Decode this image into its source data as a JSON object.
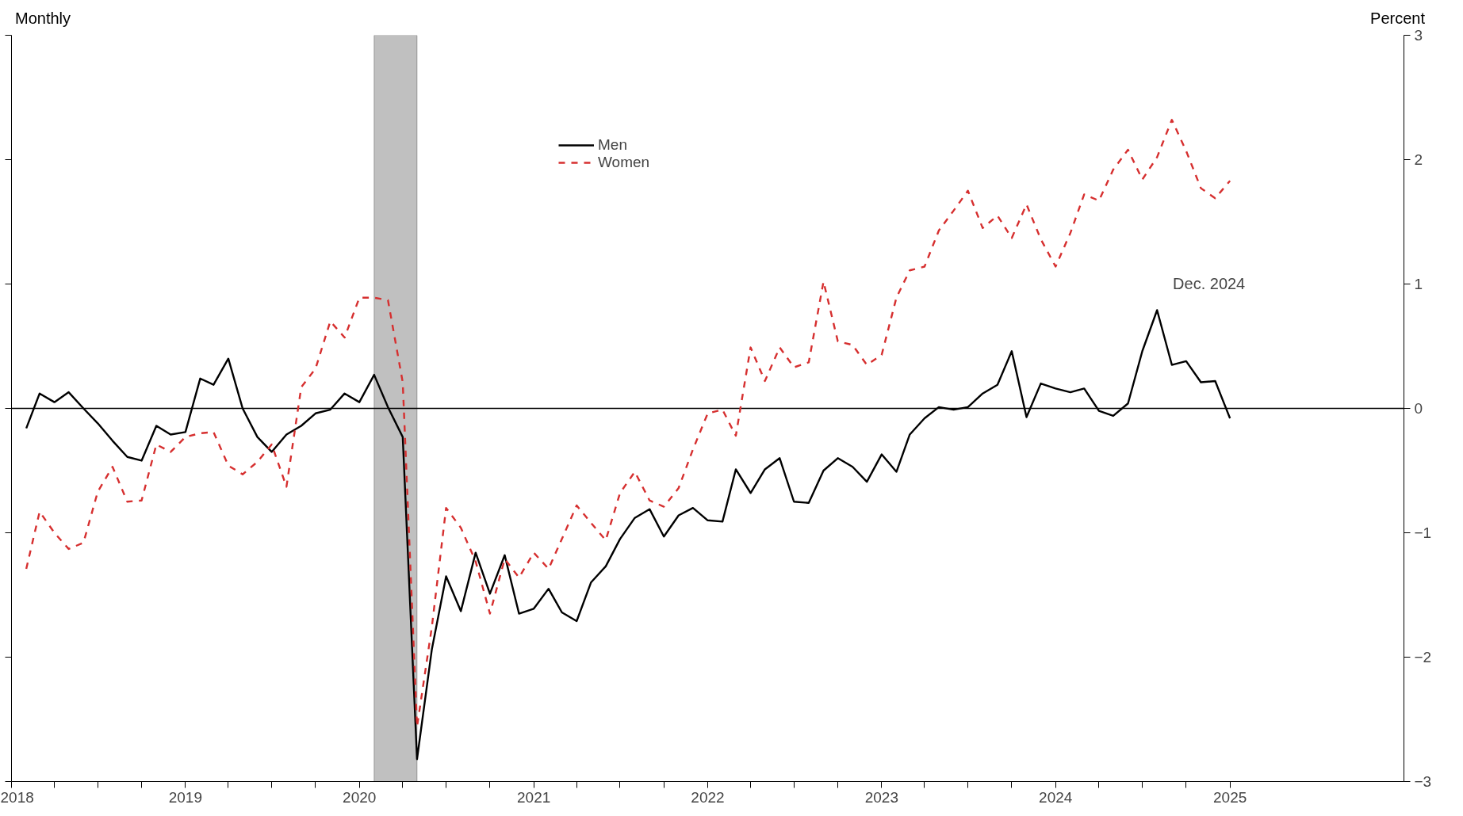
{
  "chart_data": {
    "type": "line",
    "ylabel": "Percent",
    "annotations": [
      "Monthly",
      "Dec. 2024"
    ],
    "x": [
      "2018-02",
      "2018-03",
      "2018-04",
      "2018-05",
      "2018-06",
      "2018-07",
      "2018-08",
      "2018-09",
      "2018-10",
      "2018-11",
      "2018-12",
      "2019-01",
      "2019-02",
      "2019-03",
      "2019-04",
      "2019-05",
      "2019-06",
      "2019-07",
      "2019-08",
      "2019-09",
      "2019-10",
      "2019-11",
      "2019-12",
      "2020-01",
      "2020-02",
      "2020-03",
      "2020-04",
      "2020-05",
      "2020-06",
      "2020-07",
      "2020-08",
      "2020-09",
      "2020-10",
      "2020-11",
      "2020-12",
      "2021-01",
      "2021-02",
      "2021-03",
      "2021-04",
      "2021-05",
      "2021-06",
      "2021-07",
      "2021-08",
      "2021-09",
      "2021-10",
      "2021-11",
      "2021-12",
      "2022-01",
      "2022-02",
      "2022-03",
      "2022-04",
      "2022-05",
      "2022-06",
      "2022-07",
      "2022-08",
      "2022-09",
      "2022-10",
      "2022-11",
      "2022-12",
      "2023-01",
      "2023-02",
      "2023-03",
      "2023-04",
      "2023-05",
      "2023-06",
      "2023-07",
      "2023-08",
      "2023-09",
      "2023-10",
      "2023-11",
      "2023-12",
      "2024-01",
      "2024-02",
      "2024-03",
      "2024-04",
      "2024-05",
      "2024-06",
      "2024-07",
      "2024-08",
      "2024-09",
      "2024-10",
      "2024-11",
      "2024-12",
      "2025-01"
    ],
    "series": [
      {
        "name": "Men",
        "color": "#000000",
        "line_style": "solid",
        "values": [
          -0.16,
          0.12,
          0.05,
          0.13,
          0.0,
          -0.12,
          -0.26,
          -0.39,
          -0.42,
          -0.14,
          -0.21,
          -0.19,
          0.24,
          0.19,
          0.4,
          0.0,
          -0.23,
          -0.35,
          -0.21,
          -0.14,
          -0.04,
          -0.01,
          0.12,
          0.05,
          0.27,
          0.01,
          -0.23,
          -2.82,
          -1.94,
          -1.35,
          -1.63,
          -1.16,
          -1.49,
          -1.18,
          -1.65,
          -1.61,
          -1.45,
          -1.64,
          -1.71,
          -1.4,
          -1.27,
          -1.05,
          -0.88,
          -0.81,
          -1.03,
          -0.86,
          -0.8,
          -0.9,
          -0.91,
          -0.49,
          -0.68,
          -0.49,
          -0.4,
          -0.75,
          -0.76,
          -0.5,
          -0.4,
          -0.47,
          -0.59,
          -0.37,
          -0.51,
          -0.21,
          -0.08,
          0.01,
          -0.01,
          0.01,
          0.12,
          0.19,
          0.46,
          -0.07,
          0.2,
          0.16,
          0.13,
          0.16,
          -0.02,
          -0.06,
          0.04,
          0.46,
          0.79,
          0.35,
          0.38,
          0.21,
          0.22,
          -0.08
        ]
      },
      {
        "name": "Women",
        "color": "#d62f2f",
        "line_style": "dashed",
        "values": [
          -1.29,
          -0.83,
          -1.0,
          -1.13,
          -1.08,
          -0.67,
          -0.47,
          -0.75,
          -0.74,
          -0.29,
          -0.35,
          -0.23,
          -0.2,
          -0.19,
          -0.46,
          -0.53,
          -0.43,
          -0.29,
          -0.63,
          0.17,
          0.32,
          0.7,
          0.57,
          0.89,
          0.89,
          0.87,
          0.21,
          -2.56,
          -1.76,
          -0.8,
          -0.96,
          -1.23,
          -1.65,
          -1.21,
          -1.36,
          -1.16,
          -1.29,
          -1.05,
          -0.78,
          -0.92,
          -1.06,
          -0.68,
          -0.51,
          -0.74,
          -0.79,
          -0.64,
          -0.33,
          -0.04,
          -0.01,
          -0.22,
          0.49,
          0.22,
          0.49,
          0.33,
          0.37,
          1.02,
          0.54,
          0.51,
          0.35,
          0.43,
          0.89,
          1.11,
          1.14,
          1.43,
          1.59,
          1.75,
          1.45,
          1.55,
          1.37,
          1.64,
          1.36,
          1.14,
          1.41,
          1.72,
          1.67,
          1.92,
          2.08,
          1.84,
          2.02,
          2.32,
          2.07,
          1.77,
          1.69,
          1.83
        ]
      }
    ],
    "xlim": [
      "2018-01",
      "2026-01"
    ],
    "xticks": [
      "2018",
      "2019",
      "2020",
      "2021",
      "2022",
      "2023",
      "2024",
      "2025",
      {
        "value": "2018-04",
        "label": null
      },
      {
        "value": "2018-07",
        "label": null
      },
      {
        "value": "2018-10",
        "label": null
      },
      {
        "value": "2019-04",
        "label": null
      },
      {
        "value": "2019-07",
        "label": null
      },
      {
        "value": "2019-10",
        "label": null
      },
      {
        "value": "2020-04",
        "label": null
      },
      {
        "value": "2020-07",
        "label": null
      },
      {
        "value": "2020-10",
        "label": null
      },
      {
        "value": "2021-04",
        "label": null
      },
      {
        "value": "2021-07",
        "label": null
      },
      {
        "value": "2021-10",
        "label": null
      },
      {
        "value": "2022-04",
        "label": null
      },
      {
        "value": "2022-07",
        "label": null
      },
      {
        "value": "2022-10",
        "label": null
      },
      {
        "value": "2023-04",
        "label": null
      },
      {
        "value": "2023-07",
        "label": null
      },
      {
        "value": "2023-10",
        "label": null
      },
      {
        "value": "2024-04",
        "label": null
      },
      {
        "value": "2024-07",
        "label": null
      },
      {
        "value": "2024-10",
        "label": null
      }
    ],
    "ylim": [
      -3,
      3
    ],
    "yticks": [
      -3,
      -2,
      -1,
      0,
      1,
      2,
      3
    ],
    "ref_lines": [
      {
        "axis": "y",
        "value": 0,
        "color": "#000000"
      }
    ],
    "bands": [
      {
        "axis": "x",
        "from": "2020-02",
        "to": "2020-05",
        "color": "#c0c0c0"
      }
    ],
    "grid": false,
    "legend": "top",
    "marker": "none"
  }
}
